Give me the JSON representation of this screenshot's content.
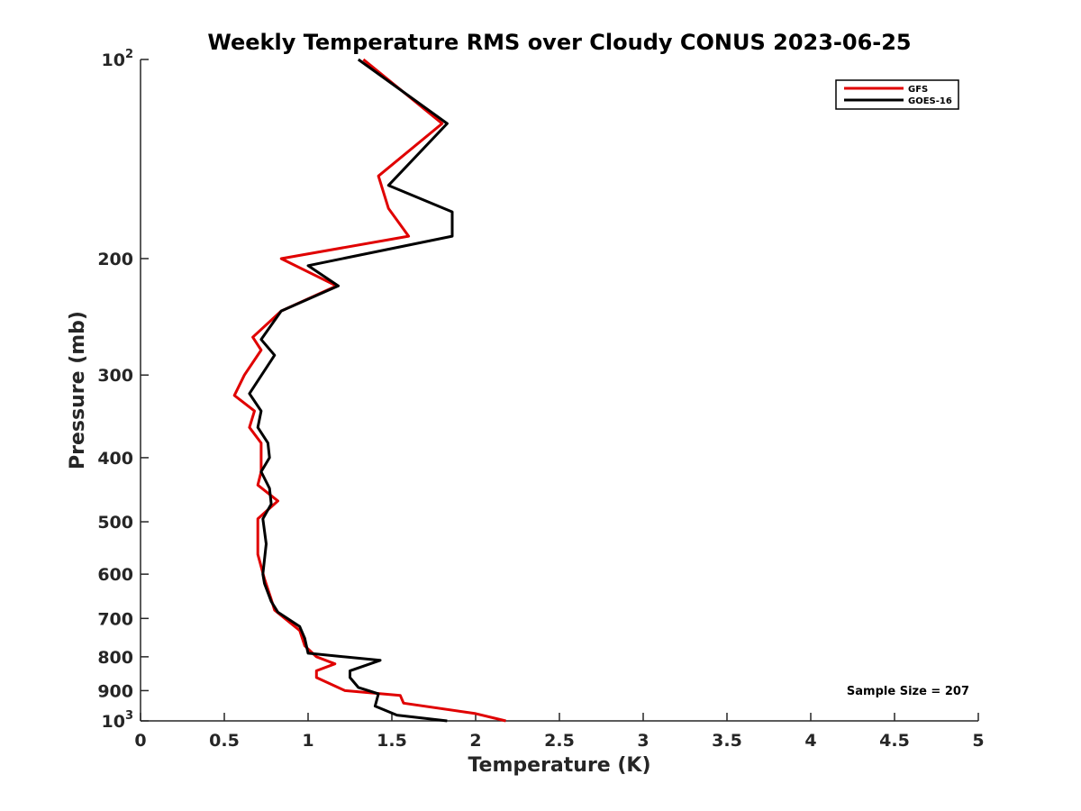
{
  "chart_data": {
    "type": "line",
    "title": "Weekly Temperature RMS over Cloudy CONUS 2023-06-25",
    "xlabel": "Temperature (K)",
    "ylabel": "Pressure (mb)",
    "xlim": [
      0,
      5
    ],
    "ylim": [
      1000,
      100
    ],
    "yscale": "log",
    "y_reversed": true,
    "x_ticks": [
      {
        "value": 0,
        "label": "0"
      },
      {
        "value": 0.5,
        "label": "0.5"
      },
      {
        "value": 1,
        "label": "1"
      },
      {
        "value": 1.5,
        "label": "1.5"
      },
      {
        "value": 2,
        "label": "2"
      },
      {
        "value": 2.5,
        "label": "2.5"
      },
      {
        "value": 3,
        "label": "3"
      },
      {
        "value": 3.5,
        "label": "3.5"
      },
      {
        "value": 4,
        "label": "4"
      },
      {
        "value": 4.5,
        "label": "4.5"
      },
      {
        "value": 5,
        "label": "5"
      }
    ],
    "y_ticks": [
      {
        "value": 100,
        "base": "10",
        "exp": "2"
      },
      {
        "value": 200,
        "base": "200",
        "exp": ""
      },
      {
        "value": 300,
        "base": "300",
        "exp": ""
      },
      {
        "value": 400,
        "base": "400",
        "exp": ""
      },
      {
        "value": 500,
        "base": "500",
        "exp": ""
      },
      {
        "value": 600,
        "base": "600",
        "exp": ""
      },
      {
        "value": 700,
        "base": "700",
        "exp": ""
      },
      {
        "value": 800,
        "base": "800",
        "exp": ""
      },
      {
        "value": 900,
        "base": "900",
        "exp": ""
      },
      {
        "value": 1000,
        "base": "10",
        "exp": "3"
      }
    ],
    "grid": false,
    "legend_position": "top-right",
    "annotation": "Sample Size = 207",
    "series": [
      {
        "name": "GFS",
        "color": "#e00000",
        "points": [
          [
            1.33,
            100
          ],
          [
            1.8,
            125
          ],
          [
            1.42,
            150
          ],
          [
            1.48,
            168
          ],
          [
            1.6,
            185
          ],
          [
            0.84,
            200
          ],
          [
            1.17,
            220
          ],
          [
            0.84,
            240
          ],
          [
            0.67,
            263
          ],
          [
            0.72,
            275
          ],
          [
            0.62,
            300
          ],
          [
            0.56,
            322
          ],
          [
            0.68,
            340
          ],
          [
            0.65,
            360
          ],
          [
            0.72,
            380
          ],
          [
            0.72,
            420
          ],
          [
            0.7,
            440
          ],
          [
            0.82,
            465
          ],
          [
            0.7,
            495
          ],
          [
            0.7,
            540
          ],
          [
            0.7,
            560
          ],
          [
            0.74,
            610
          ],
          [
            0.78,
            655
          ],
          [
            0.8,
            680
          ],
          [
            0.95,
            730
          ],
          [
            0.98,
            770
          ],
          [
            1.05,
            800
          ],
          [
            1.16,
            820
          ],
          [
            1.05,
            840
          ],
          [
            1.05,
            860
          ],
          [
            1.22,
            900
          ],
          [
            1.55,
            915
          ],
          [
            1.57,
            940
          ],
          [
            2.0,
            975
          ],
          [
            2.18,
            1000
          ]
        ]
      },
      {
        "name": "GOES-16",
        "color": "#000000",
        "points": [
          [
            1.3,
            100
          ],
          [
            1.83,
            125
          ],
          [
            1.48,
            155
          ],
          [
            1.86,
            170
          ],
          [
            1.86,
            185
          ],
          [
            1.0,
            205
          ],
          [
            1.18,
            220
          ],
          [
            0.84,
            240
          ],
          [
            0.72,
            265
          ],
          [
            0.8,
            280
          ],
          [
            0.65,
            320
          ],
          [
            0.72,
            340
          ],
          [
            0.7,
            360
          ],
          [
            0.76,
            380
          ],
          [
            0.77,
            400
          ],
          [
            0.72,
            420
          ],
          [
            0.77,
            445
          ],
          [
            0.78,
            470
          ],
          [
            0.73,
            495
          ],
          [
            0.75,
            540
          ],
          [
            0.73,
            600
          ],
          [
            0.74,
            620
          ],
          [
            0.78,
            660
          ],
          [
            0.82,
            685
          ],
          [
            0.95,
            720
          ],
          [
            0.98,
            750
          ],
          [
            1.0,
            790
          ],
          [
            1.43,
            810
          ],
          [
            1.25,
            840
          ],
          [
            1.25,
            860
          ],
          [
            1.3,
            890
          ],
          [
            1.42,
            910
          ],
          [
            1.4,
            950
          ],
          [
            1.53,
            980
          ],
          [
            1.83,
            1000
          ]
        ]
      }
    ]
  }
}
